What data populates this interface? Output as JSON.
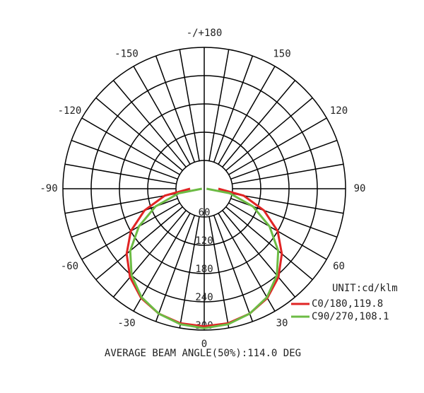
{
  "chart_data": {
    "type": "polar",
    "x": [
      -90,
      -80,
      -70,
      -60,
      -50,
      -40,
      -30,
      -20,
      -10,
      0,
      10,
      20,
      30,
      40,
      50,
      60,
      70,
      80,
      90
    ],
    "series": [
      {
        "name": "C0/180,119.8",
        "color": "#e02424",
        "values": [
          30,
          85,
          135,
          180,
          215,
          245,
          268,
          282,
          290,
          292,
          290,
          282,
          268,
          245,
          215,
          180,
          135,
          85,
          30
        ]
      },
      {
        "name": "C90/270,108.1",
        "color": "#6cbb44",
        "values": [
          5,
          55,
          110,
          160,
          205,
          240,
          266,
          282,
          292,
          296,
          292,
          282,
          266,
          240,
          205,
          160,
          110,
          55,
          5
        ]
      }
    ],
    "rlim": [
      0,
      300
    ],
    "rticks": [
      60,
      120,
      180,
      240,
      300
    ],
    "angle_ticks": [
      0,
      30,
      60,
      90,
      120,
      150,
      {
        "value": 180,
        "label": "-/+180"
      },
      -150,
      -120,
      -90,
      -60,
      -30
    ],
    "unit_label": "UNIT:cd/klm",
    "footer": "AVERAGE BEAM ANGLE(50%):114.0 DEG"
  }
}
